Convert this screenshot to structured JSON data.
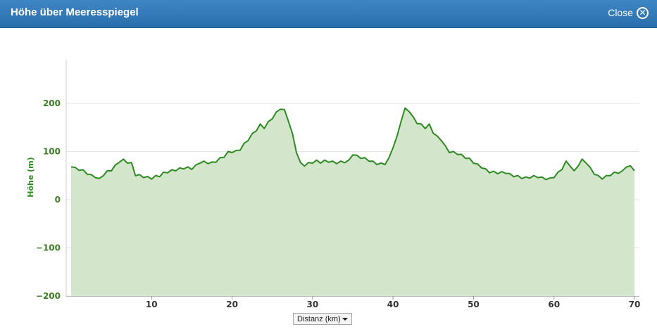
{
  "window": {
    "title": "Höhe über Meeresspiegel",
    "close_label": "Close"
  },
  "colors": {
    "line": "#2e8b22",
    "fill": "#d3e6cc",
    "titlebar": "#3479b9",
    "tick_y": "#3a7d22"
  },
  "icons": {
    "close": "close-circle-x-icon"
  },
  "axis_select": {
    "label": "Distanz (km)"
  },
  "chart_data": {
    "type": "area",
    "title": "",
    "xlabel": "Distanz (km)",
    "ylabel": "Höhe (m)",
    "xlim": [
      0,
      70
    ],
    "ylim": [
      -200,
      200
    ],
    "xticks": [
      10,
      20,
      30,
      40,
      50,
      60,
      70
    ],
    "yticks": [
      200,
      100,
      0,
      -100,
      -200
    ],
    "y_tick_labels": [
      "200",
      "100",
      "0",
      "−100",
      "−200"
    ],
    "grid": true,
    "series": [
      {
        "name": "",
        "x": [
          0,
          0.5,
          1,
          1.5,
          2,
          2.5,
          3,
          3.5,
          4,
          4.5,
          5,
          5.5,
          6,
          6.5,
          7,
          7.5,
          8,
          8.5,
          9,
          9.5,
          10,
          10.5,
          11,
          11.5,
          12,
          12.5,
          13,
          13.5,
          14,
          14.5,
          15,
          15.5,
          16,
          16.5,
          17,
          17.5,
          18,
          18.5,
          19,
          19.5,
          20,
          20.5,
          21,
          21.5,
          22,
          22.5,
          23,
          23.5,
          24,
          24.5,
          25,
          25.5,
          26,
          26.5,
          27,
          27.5,
          28,
          28.5,
          29,
          29.5,
          30,
          30.5,
          31,
          31.5,
          32,
          32.5,
          33,
          33.5,
          34,
          34.5,
          35,
          35.5,
          36,
          36.5,
          37,
          37.5,
          38,
          38.5,
          39,
          39.5,
          40,
          40.5,
          41,
          41.5,
          42,
          42.5,
          43,
          43.5,
          44,
          44.5,
          45,
          45.5,
          46,
          46.5,
          47,
          47.5,
          48,
          48.5,
          49,
          49.5,
          50,
          50.5,
          51,
          51.5,
          52,
          52.5,
          53,
          53.5,
          54,
          54.5,
          55,
          55.5,
          56,
          56.5,
          57,
          57.5,
          58,
          58.5,
          59,
          59.5,
          60,
          60.5,
          61,
          61.5,
          62,
          62.5,
          63,
          63.5,
          64,
          64.5,
          65,
          65.5,
          66,
          66.5,
          67,
          67.5,
          68,
          68.5,
          69,
          69.5,
          70
        ],
        "values": [
          68,
          65,
          63,
          60,
          55,
          50,
          48,
          42,
          52,
          58,
          62,
          70,
          80,
          82,
          78,
          75,
          52,
          50,
          48,
          46,
          45,
          48,
          50,
          55,
          58,
          60,
          62,
          64,
          66,
          66,
          65,
          70,
          78,
          78,
          77,
          76,
          80,
          85,
          90,
          98,
          100,
          100,
          105,
          115,
          125,
          135,
          145,
          155,
          150,
          160,
          170,
          180,
          190,
          185,
          165,
          135,
          100,
          75,
          72,
          75,
          78,
          80,
          78,
          80,
          80,
          78,
          77,
          78,
          79,
          80,
          95,
          90,
          88,
          85,
          82,
          78,
          75,
          74,
          75,
          85,
          110,
          130,
          165,
          188,
          185,
          170,
          160,
          155,
          150,
          155,
          140,
          130,
          125,
          110,
          100,
          98,
          96,
          92,
          88,
          84,
          78,
          72,
          68,
          62,
          58,
          57,
          56,
          56,
          57,
          52,
          50,
          48,
          46,
          45,
          47,
          48,
          48,
          45,
          44,
          43,
          48,
          55,
          65,
          78,
          72,
          58,
          72,
          82,
          78,
          65,
          55,
          48,
          45,
          48,
          52,
          55,
          57,
          58,
          70,
          68,
          60
        ]
      }
    ]
  }
}
